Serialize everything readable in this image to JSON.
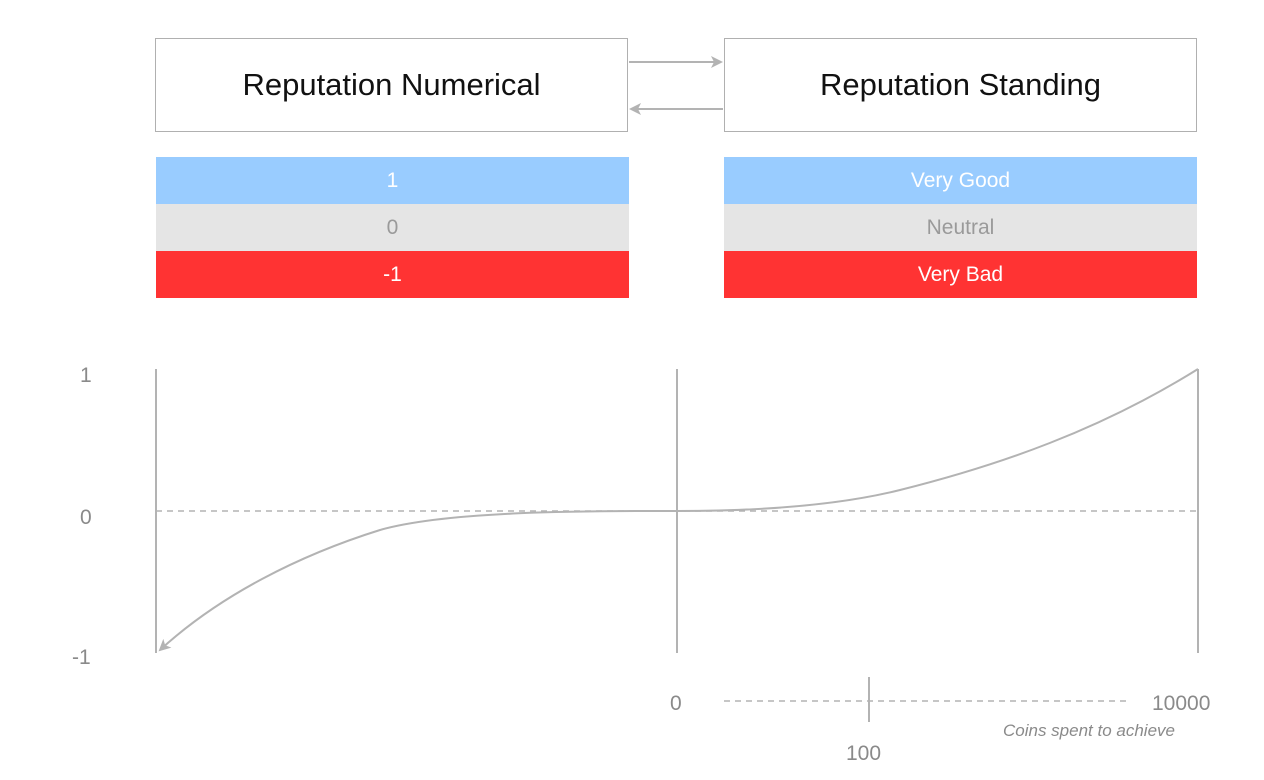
{
  "boxes": {
    "numerical": "Reputation Numerical",
    "standing": "Reputation Standing"
  },
  "numerical_rows": [
    {
      "label": "1",
      "color": "#99ccff"
    },
    {
      "label": "0",
      "color": "#e5e5e5"
    },
    {
      "label": "-1",
      "color": "#ff3333"
    }
  ],
  "standing_rows": [
    {
      "label": "Very Good",
      "color": "#99ccff"
    },
    {
      "label": "Neutral",
      "color": "#e5e5e5"
    },
    {
      "label": "Very Bad",
      "color": "#ff3333"
    }
  ],
  "graph": {
    "y_ticks": [
      "1",
      "0",
      "-1"
    ],
    "x_center": "0",
    "scale_start": "0",
    "scale_mid": "100",
    "scale_end": "10000",
    "scale_caption": "Coins spent to achieve",
    "line_color": "#b3b3b3"
  }
}
